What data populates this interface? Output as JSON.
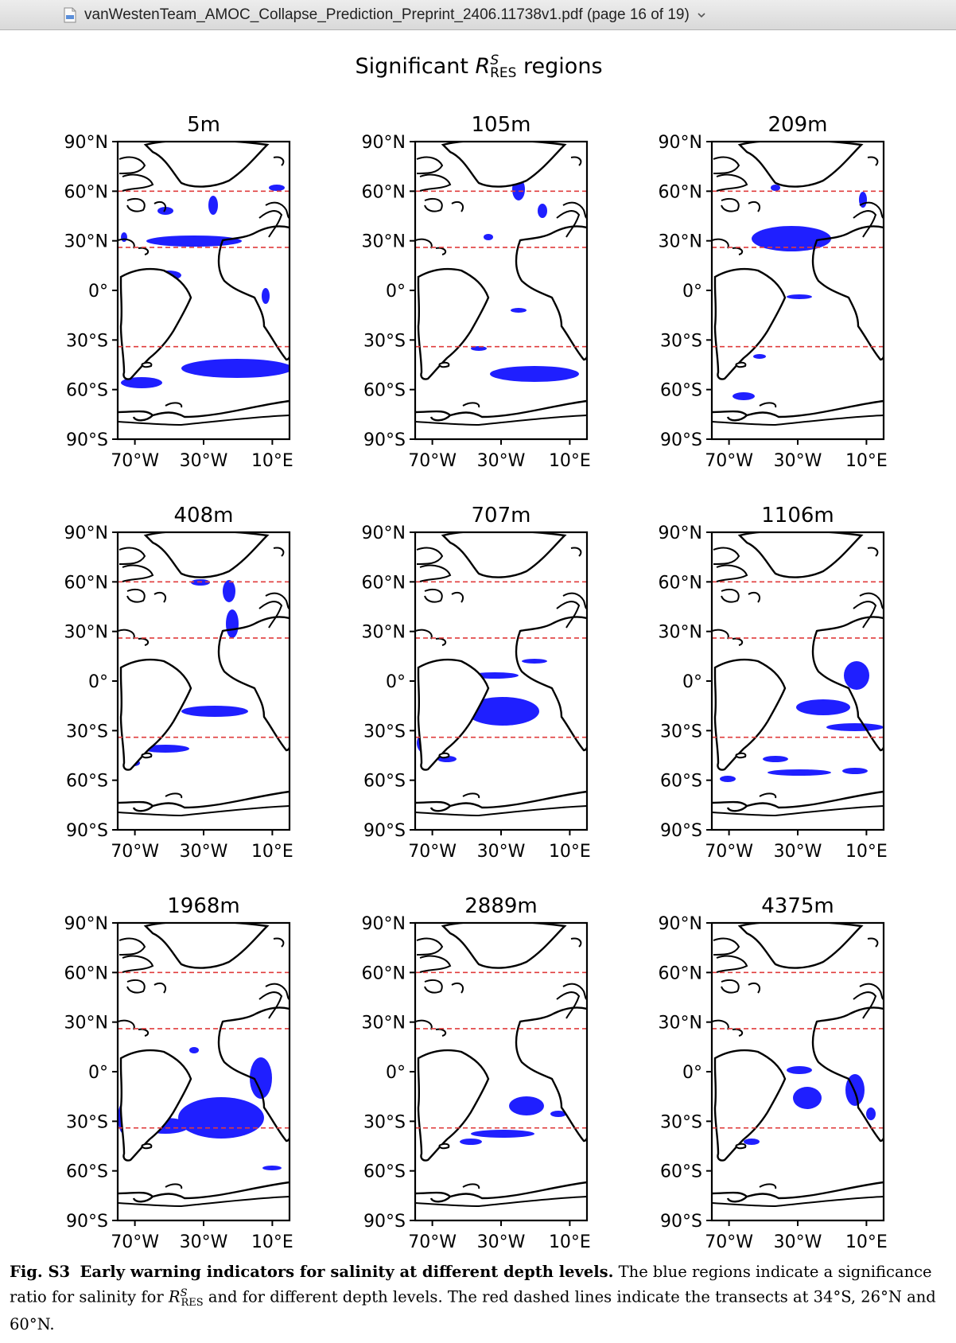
{
  "window": {
    "title": "vanWestenTeam_AMOC_Collapse_Prediction_Preprint_2406.11738v1.pdf (page 16 of 19)",
    "icon": "pdf-document-icon",
    "menu_icon": "chevron-down-icon"
  },
  "figure": {
    "suptitle_pre": "Significant ",
    "suptitle_var": "R",
    "suptitle_sup": "S",
    "suptitle_sub": "RES",
    "suptitle_post": " regions",
    "lat_ticks": [
      "90°N",
      "60°N",
      "30°N",
      "0°",
      "30°S",
      "60°S",
      "90°S"
    ],
    "lon_ticks": [
      "70°W",
      "30°W",
      "10°E"
    ],
    "transects": [
      "34°S",
      "26°N",
      "60°N"
    ],
    "colors": {
      "significant": "#1f1fff",
      "transect": "#e03c3c",
      "land_outline": "#000000"
    },
    "panels": [
      {
        "depth": "5m"
      },
      {
        "depth": "105m"
      },
      {
        "depth": "209m"
      },
      {
        "depth": "408m"
      },
      {
        "depth": "707m"
      },
      {
        "depth": "1106m"
      },
      {
        "depth": "1968m"
      },
      {
        "depth": "2889m"
      },
      {
        "depth": "4375m"
      }
    ]
  },
  "caption": {
    "label": "Fig. S3",
    "bold_title": "Early warning indicators for salinity at different depth levels.",
    "text1": "The blue regions indicate a significance ratio for salinity for ",
    "var": "R",
    "var_sup": "S",
    "var_sub": "RES",
    "text2": " and for different depth levels. The red dashed lines indicate the transects at 34°S, 26°N and 60°N."
  }
}
